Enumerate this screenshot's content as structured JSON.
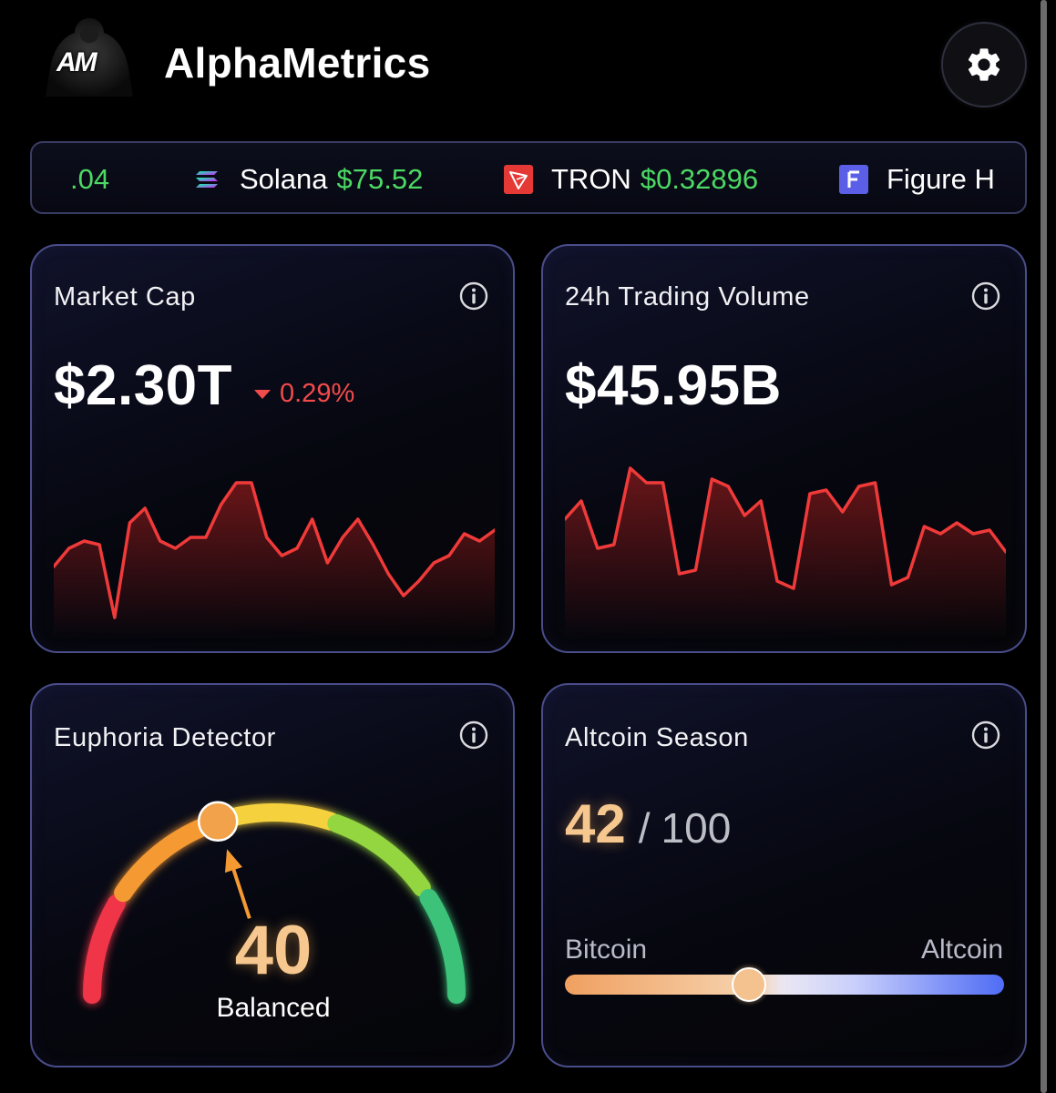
{
  "header": {
    "logo_text": "AM",
    "title": "AlphaMetrics",
    "settings_icon": "gear-icon"
  },
  "ticker": {
    "leading_fragment": ".04",
    "items": [
      {
        "name": "Solana",
        "price": "$75.52",
        "icon": "solana-icon"
      },
      {
        "name": "TRON",
        "price": "$0.32896",
        "icon": "tron-icon"
      },
      {
        "name": "Figure H",
        "price": "",
        "icon": "figure-icon"
      }
    ],
    "price_color": "#4cd964"
  },
  "cards": {
    "market_cap": {
      "title": "Market Cap",
      "value": "$2.30T",
      "change": "0.29%",
      "change_direction": "down",
      "change_color": "#f24b4b"
    },
    "volume": {
      "title": "24h Trading Volume",
      "value": "$45.95B"
    },
    "euphoria": {
      "title": "Euphoria Detector",
      "value": "40",
      "label": "Balanced",
      "level_fraction": 0.4
    },
    "altcoin": {
      "title": "Altcoin Season",
      "score": "42",
      "separator": "/",
      "max": "100",
      "left_label": "Bitcoin",
      "right_label": "Altcoin",
      "level_fraction": 0.42
    }
  },
  "chart_data": [
    {
      "type": "area",
      "series": [
        {
          "values": [
            34,
            44,
            48,
            46,
            6,
            58,
            66,
            48,
            44,
            50,
            50,
            68,
            80,
            80,
            50,
            40,
            44,
            60,
            36,
            50,
            60,
            46,
            30,
            18,
            26,
            36,
            40,
            52,
            48,
            54
          ]
        }
      ],
      "color": "#f03a3a"
    },
    {
      "type": "area",
      "series": [
        {
          "values": [
            60,
            70,
            44,
            46,
            88,
            80,
            80,
            30,
            32,
            82,
            78,
            62,
            70,
            26,
            22,
            74,
            76,
            64,
            78,
            80,
            24,
            28,
            56,
            52,
            58,
            52,
            54,
            42
          ]
        }
      ],
      "color": "#f03a3a"
    }
  ]
}
